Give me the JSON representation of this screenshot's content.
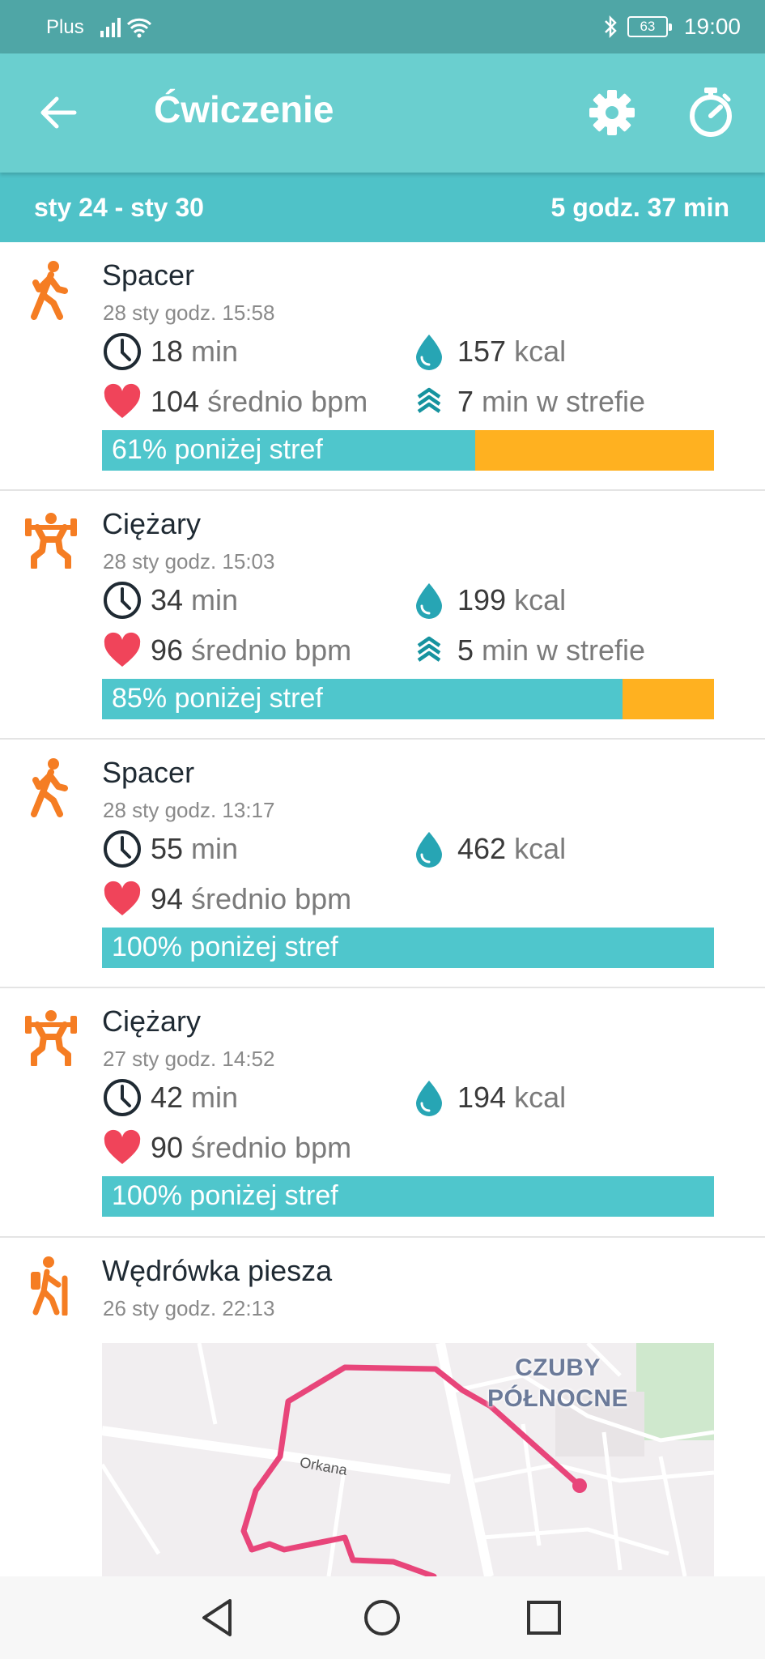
{
  "status_bar": {
    "carrier": "Plus",
    "battery": "63",
    "time": "19:00"
  },
  "app_bar": {
    "title": "Ćwiczenie"
  },
  "week": {
    "range": "sty 24 - sty 30",
    "total": "5 godz. 37 min"
  },
  "colors": {
    "accent": "#6acfcf",
    "week_bar": "#4fc2c8",
    "activity_orange": "#f57d23",
    "zone_below": "#4fc6cc",
    "zone_in": "#ffb120",
    "heart": "#f0445a",
    "route": "#e8457a"
  },
  "entries": [
    {
      "icon": "walk-icon",
      "name": "Spacer",
      "date": "28 sty godz. 15:58",
      "duration_value": "18",
      "duration_unit": "min",
      "calories_value": "157",
      "calories_unit": "kcal",
      "bpm_value": "104",
      "bpm_unit": "średnio bpm",
      "zone_value": "7",
      "zone_unit": "min w strefie",
      "below_zone_label": "61% poniżej stref",
      "below_zone_percent": 61
    },
    {
      "icon": "weights-icon",
      "name": "Ciężary",
      "date": "28 sty godz. 15:03",
      "duration_value": "34",
      "duration_unit": "min",
      "calories_value": "199",
      "calories_unit": "kcal",
      "bpm_value": "96",
      "bpm_unit": "średnio bpm",
      "zone_value": "5",
      "zone_unit": "min w strefie",
      "below_zone_label": "85% poniżej stref",
      "below_zone_percent": 85
    },
    {
      "icon": "walk-icon",
      "name": "Spacer",
      "date": "28 sty godz. 13:17",
      "duration_value": "55",
      "duration_unit": "min",
      "calories_value": "462",
      "calories_unit": "kcal",
      "bpm_value": "94",
      "bpm_unit": "średnio bpm",
      "below_zone_label": "100% poniżej stref",
      "below_zone_percent": 100
    },
    {
      "icon": "weights-icon",
      "name": "Ciężary",
      "date": "27 sty godz. 14:52",
      "duration_value": "42",
      "duration_unit": "min",
      "calories_value": "194",
      "calories_unit": "kcal",
      "bpm_value": "90",
      "bpm_unit": "średnio bpm",
      "below_zone_label": "100% poniżej stref",
      "below_zone_percent": 100
    },
    {
      "icon": "hike-icon",
      "name": "Wędrówka piesza",
      "date": "26 sty godz. 22:13"
    }
  ],
  "map": {
    "district_line1": "CZUBY",
    "district_line2": "PÓŁNOCNE",
    "street": "Orkana"
  }
}
